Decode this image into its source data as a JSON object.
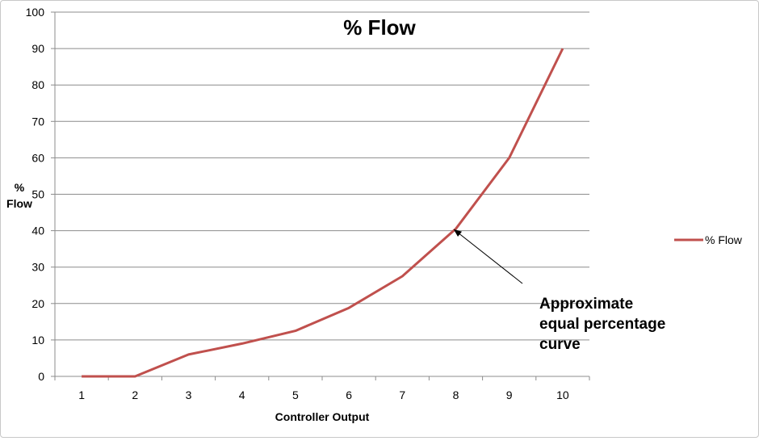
{
  "chart_data": {
    "type": "line",
    "title": "% Flow",
    "xlabel": "Controller Output",
    "ylabel_line1": "%",
    "ylabel_line2": "Flow",
    "categories": [
      "1",
      "2",
      "3",
      "4",
      "5",
      "6",
      "7",
      "8",
      "9",
      "10"
    ],
    "ylim": [
      0,
      100
    ],
    "yticks": [
      0,
      10,
      20,
      30,
      40,
      50,
      60,
      70,
      80,
      90,
      100
    ],
    "grid": true,
    "legend_position": "right",
    "series": [
      {
        "name": "% Flow",
        "color": "#c0504d",
        "values": [
          0,
          0,
          6,
          9,
          12.5,
          18.8,
          27.5,
          40.5,
          60,
          90
        ]
      }
    ],
    "annotation": {
      "lines": [
        "Approximate",
        "equal percentage",
        "curve"
      ],
      "points_to_category": "8"
    }
  }
}
